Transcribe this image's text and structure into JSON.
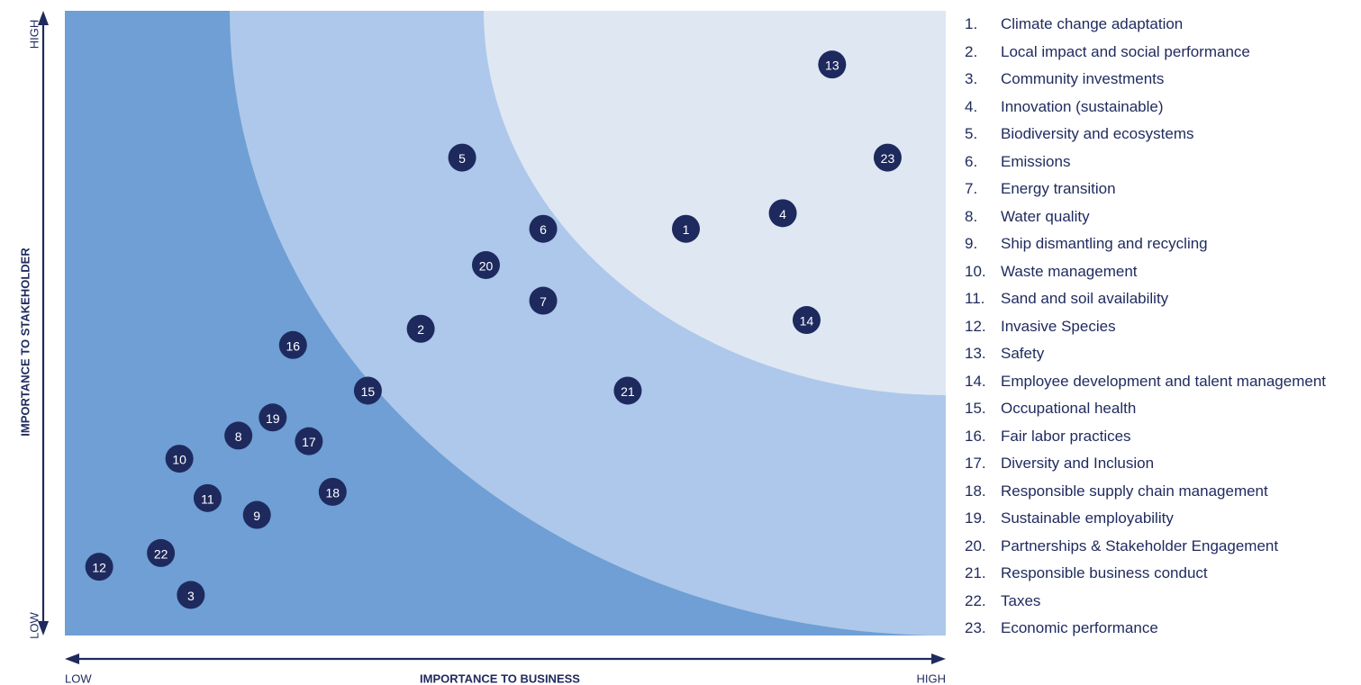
{
  "chart_data": {
    "type": "scatter",
    "xlabel": "IMPORTANCE TO BUSINESS",
    "ylabel": "IMPORTANCE TO STAKEHOLDER",
    "x_low_label": "LOW",
    "x_high_label": "HIGH",
    "y_low_label": "LOW",
    "y_high_label": "HIGH",
    "xlim": [
      0,
      100
    ],
    "ylim": [
      0,
      100
    ],
    "zone_colors": [
      "#6f9fd4",
      "#adc8ea",
      "#dfe7f3"
    ],
    "marker_color": "#1e2a5e",
    "points": [
      {
        "id": "1",
        "label": "Climate change adaptation",
        "x": 70.5,
        "y": 65.1
      },
      {
        "id": "2",
        "label": "Local impact and social performance",
        "x": 40.4,
        "y": 49.1
      },
      {
        "id": "3",
        "label": "Community investments",
        "x": 14.3,
        "y": 6.5
      },
      {
        "id": "4",
        "label": "Innovation (sustainable)",
        "x": 81.5,
        "y": 67.6
      },
      {
        "id": "5",
        "label": "Biodiversity and ecosystems",
        "x": 45.1,
        "y": 76.5
      },
      {
        "id": "6",
        "label": "Emissions",
        "x": 54.3,
        "y": 65.1
      },
      {
        "id": "7",
        "label": "Energy transition",
        "x": 54.3,
        "y": 53.6
      },
      {
        "id": "8",
        "label": "Water quality",
        "x": 19.7,
        "y": 32.0
      },
      {
        "id": "9",
        "label": "Ship dismantling and recycling",
        "x": 21.8,
        "y": 19.3
      },
      {
        "id": "10",
        "label": "Waste management",
        "x": 13.0,
        "y": 28.3
      },
      {
        "id": "11",
        "label": "Sand and soil availability",
        "x": 16.2,
        "y": 22.0
      },
      {
        "id": "12",
        "label": "Invasive Species",
        "x": 3.9,
        "y": 11.0
      },
      {
        "id": "13",
        "label": "Safety",
        "x": 87.1,
        "y": 91.4
      },
      {
        "id": "14",
        "label": "Employee development and talent management",
        "x": 84.2,
        "y": 50.5
      },
      {
        "id": "15",
        "label": "Occupational health",
        "x": 34.4,
        "y": 39.2
      },
      {
        "id": "16",
        "label": "Fair labor practices",
        "x": 25.9,
        "y": 46.5
      },
      {
        "id": "17",
        "label": "Diversity and Inclusion",
        "x": 27.7,
        "y": 31.1
      },
      {
        "id": "18",
        "label": "Responsible supply chain management",
        "x": 30.4,
        "y": 23.0
      },
      {
        "id": "19",
        "label": "Sustainable employability",
        "x": 23.6,
        "y": 34.9
      },
      {
        "id": "20",
        "label": "Partnerships & Stakeholder Engagement",
        "x": 47.8,
        "y": 59.3
      },
      {
        "id": "21",
        "label": "Responsible business conduct",
        "x": 63.9,
        "y": 39.2
      },
      {
        "id": "22",
        "label": "Taxes",
        "x": 10.9,
        "y": 13.2
      },
      {
        "id": "23",
        "label": "Economic performance",
        "x": 93.4,
        "y": 76.5
      }
    ]
  }
}
